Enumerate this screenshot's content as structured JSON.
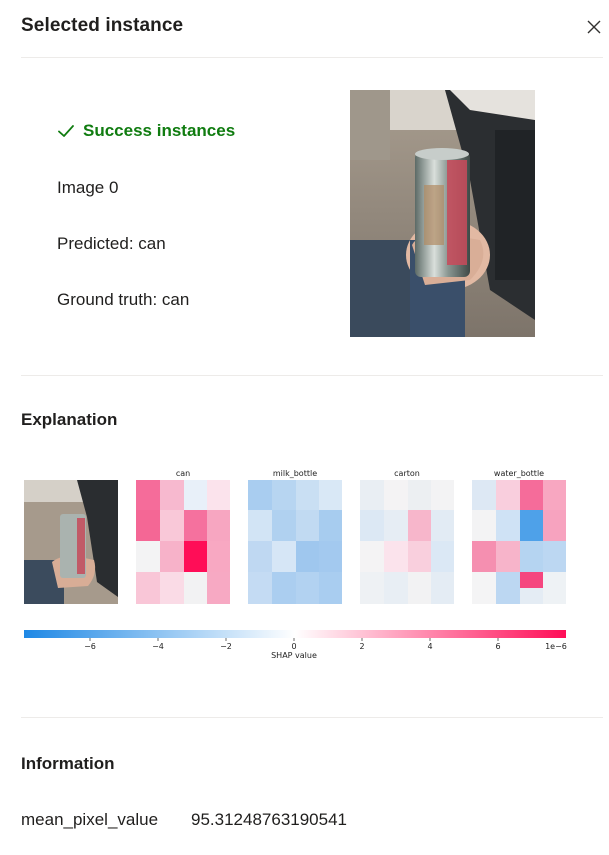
{
  "panel": {
    "title": "Selected instance",
    "close_icon": "close-icon"
  },
  "instance": {
    "status_icon": "checkmark-icon",
    "status_color": "#107c10",
    "status": "Success instances",
    "image_label": "Image 0",
    "predicted": "Predicted: can",
    "ground_truth": "Ground truth: can"
  },
  "explanation": {
    "heading": "Explanation",
    "class_titles": [
      "can",
      "milk_bottle",
      "carton",
      "water_bottle"
    ],
    "colorbar": {
      "ticks": [
        "−6",
        "−4",
        "−2",
        "0",
        "2",
        "4",
        "6"
      ],
      "label": "SHAP value",
      "scale": "1e−6",
      "negative_color": "#1e88e5",
      "positive_color": "#ff0d57"
    }
  },
  "information": {
    "heading": "Information",
    "rows": [
      {
        "key": "mean_pixel_value",
        "value": "95.31248763190541"
      }
    ]
  }
}
